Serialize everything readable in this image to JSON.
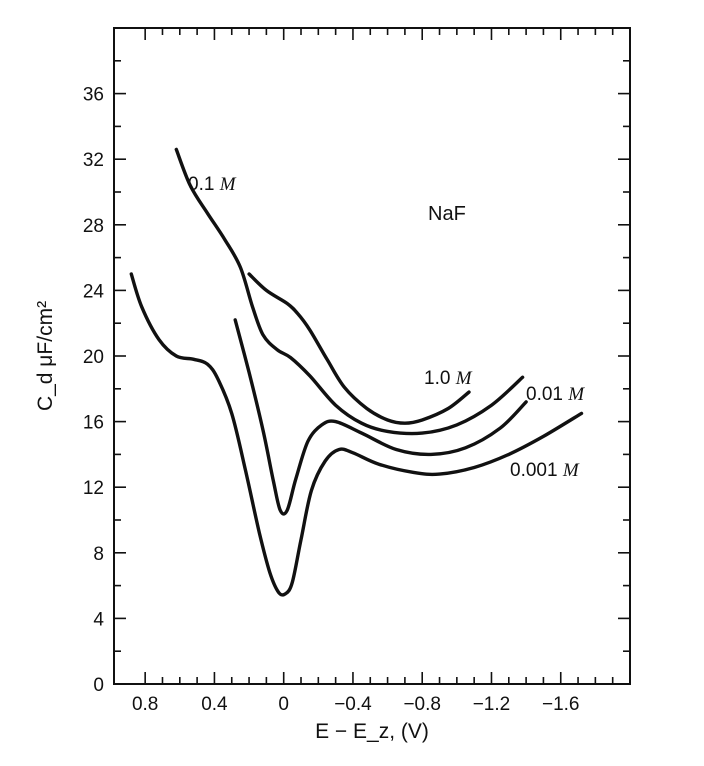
{
  "chart_data": {
    "type": "line",
    "title": "",
    "xlabel": "E − E_z, (V)",
    "ylabel": "C_d μF/cm²",
    "annotation": "NaF",
    "xlim": [
      0.98,
      -2.0
    ],
    "ylim": [
      0,
      40
    ],
    "x_ticks": [
      0.8,
      0.4,
      0,
      -0.4,
      -0.8,
      -1.2,
      -1.6
    ],
    "x_tick_labels": [
      "0.8",
      "0.4",
      "0",
      "−0.4",
      "−0.8",
      "−1.2",
      "−1.6"
    ],
    "y_ticks": [
      0,
      4,
      8,
      12,
      16,
      20,
      24,
      28,
      32,
      36
    ],
    "y_tick_labels": [
      "0",
      "4",
      "8",
      "12",
      "16",
      "20",
      "24",
      "28",
      "32",
      "36"
    ],
    "grid": false,
    "legend": "none",
    "series": [
      {
        "name": "0.1 M",
        "label": {
          "num": "0.1",
          "unit": "M"
        },
        "points": [
          [
            0.62,
            32.6
          ],
          [
            0.54,
            30.4
          ],
          [
            0.44,
            28.7
          ],
          [
            0.34,
            27.1
          ],
          [
            0.25,
            25.4
          ],
          [
            0.18,
            23.0
          ],
          [
            0.12,
            21.3
          ],
          [
            0.04,
            20.4
          ],
          [
            -0.04,
            19.9
          ],
          [
            -0.15,
            18.8
          ],
          [
            -0.3,
            17.0
          ],
          [
            -0.45,
            15.9
          ],
          [
            -0.6,
            15.4
          ],
          [
            -0.8,
            15.3
          ],
          [
            -1.0,
            15.8
          ],
          [
            -1.2,
            17.0
          ],
          [
            -1.38,
            18.7
          ]
        ]
      },
      {
        "name": "1.0 M",
        "label": {
          "num": "1.0",
          "unit": "M"
        },
        "points": [
          [
            0.2,
            25.0
          ],
          [
            0.1,
            24.0
          ],
          [
            -0.02,
            23.2
          ],
          [
            -0.08,
            22.6
          ],
          [
            -0.15,
            21.6
          ],
          [
            -0.25,
            19.8
          ],
          [
            -0.35,
            18.1
          ],
          [
            -0.48,
            16.8
          ],
          [
            -0.6,
            16.1
          ],
          [
            -0.7,
            15.9
          ],
          [
            -0.8,
            16.1
          ],
          [
            -0.95,
            16.8
          ],
          [
            -1.07,
            17.8
          ]
        ]
      },
      {
        "name": "0.01 M",
        "label": {
          "num": "0.01",
          "unit": "M"
        },
        "points": [
          [
            0.28,
            22.2
          ],
          [
            0.2,
            19.0
          ],
          [
            0.12,
            15.5
          ],
          [
            0.06,
            12.4
          ],
          [
            0.02,
            10.6
          ],
          [
            -0.02,
            10.6
          ],
          [
            -0.07,
            12.5
          ],
          [
            -0.14,
            14.8
          ],
          [
            -0.22,
            15.8
          ],
          [
            -0.3,
            16.0
          ],
          [
            -0.45,
            15.3
          ],
          [
            -0.65,
            14.3
          ],
          [
            -0.85,
            14.0
          ],
          [
            -1.05,
            14.4
          ],
          [
            -1.25,
            15.6
          ],
          [
            -1.4,
            17.2
          ]
        ]
      },
      {
        "name": "0.001 M",
        "label": {
          "num": "0.001",
          "unit": "M"
        },
        "points": [
          [
            0.88,
            25.0
          ],
          [
            0.82,
            23.0
          ],
          [
            0.72,
            21.0
          ],
          [
            0.62,
            20.0
          ],
          [
            0.52,
            19.8
          ],
          [
            0.44,
            19.5
          ],
          [
            0.38,
            18.6
          ],
          [
            0.3,
            16.5
          ],
          [
            0.22,
            13.0
          ],
          [
            0.14,
            9.2
          ],
          [
            0.08,
            6.8
          ],
          [
            0.03,
            5.6
          ],
          [
            -0.01,
            5.5
          ],
          [
            -0.05,
            6.2
          ],
          [
            -0.1,
            8.8
          ],
          [
            -0.16,
            11.8
          ],
          [
            -0.24,
            13.6
          ],
          [
            -0.32,
            14.3
          ],
          [
            -0.4,
            14.1
          ],
          [
            -0.55,
            13.4
          ],
          [
            -0.75,
            12.9
          ],
          [
            -0.9,
            12.8
          ],
          [
            -1.1,
            13.2
          ],
          [
            -1.3,
            14.0
          ],
          [
            -1.5,
            15.1
          ],
          [
            -1.72,
            16.5
          ]
        ]
      }
    ]
  }
}
